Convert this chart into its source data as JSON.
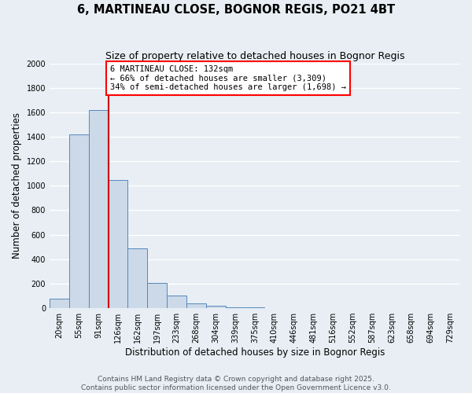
{
  "title": "6, MARTINEAU CLOSE, BOGNOR REGIS, PO21 4BT",
  "subtitle": "Size of property relative to detached houses in Bognor Regis",
  "xlabel": "Distribution of detached houses by size in Bognor Regis",
  "ylabel": "Number of detached properties",
  "bin_labels": [
    "20sqm",
    "55sqm",
    "91sqm",
    "126sqm",
    "162sqm",
    "197sqm",
    "233sqm",
    "268sqm",
    "304sqm",
    "339sqm",
    "375sqm",
    "410sqm",
    "446sqm",
    "481sqm",
    "516sqm",
    "552sqm",
    "587sqm",
    "623sqm",
    "658sqm",
    "694sqm",
    "729sqm"
  ],
  "bar_values": [
    80,
    1420,
    1620,
    1050,
    490,
    205,
    105,
    40,
    20,
    10,
    5,
    0,
    0,
    0,
    0,
    0,
    0,
    0,
    0,
    0,
    0
  ],
  "bar_color": "#ccd9e8",
  "bar_edge_color": "#5588bb",
  "vline_x_index": 3,
  "vline_color": "#cc0000",
  "annotation_title": "6 MARTINEAU CLOSE: 132sqm",
  "annotation_line1": "← 66% of detached houses are smaller (3,309)",
  "annotation_line2": "34% of semi-detached houses are larger (1,698) →",
  "ylim": [
    0,
    2000
  ],
  "yticks": [
    0,
    200,
    400,
    600,
    800,
    1000,
    1200,
    1400,
    1600,
    1800,
    2000
  ],
  "footnote1": "Contains HM Land Registry data © Crown copyright and database right 2025.",
  "footnote2": "Contains public sector information licensed under the Open Government Licence v3.0.",
  "bg_color": "#e8eef4",
  "plot_bg_color": "#e8eef4",
  "grid_color": "#ffffff",
  "title_fontsize": 10.5,
  "subtitle_fontsize": 9,
  "axis_label_fontsize": 8.5,
  "tick_fontsize": 7,
  "footnote_fontsize": 6.5,
  "annotation_fontsize": 7.5
}
